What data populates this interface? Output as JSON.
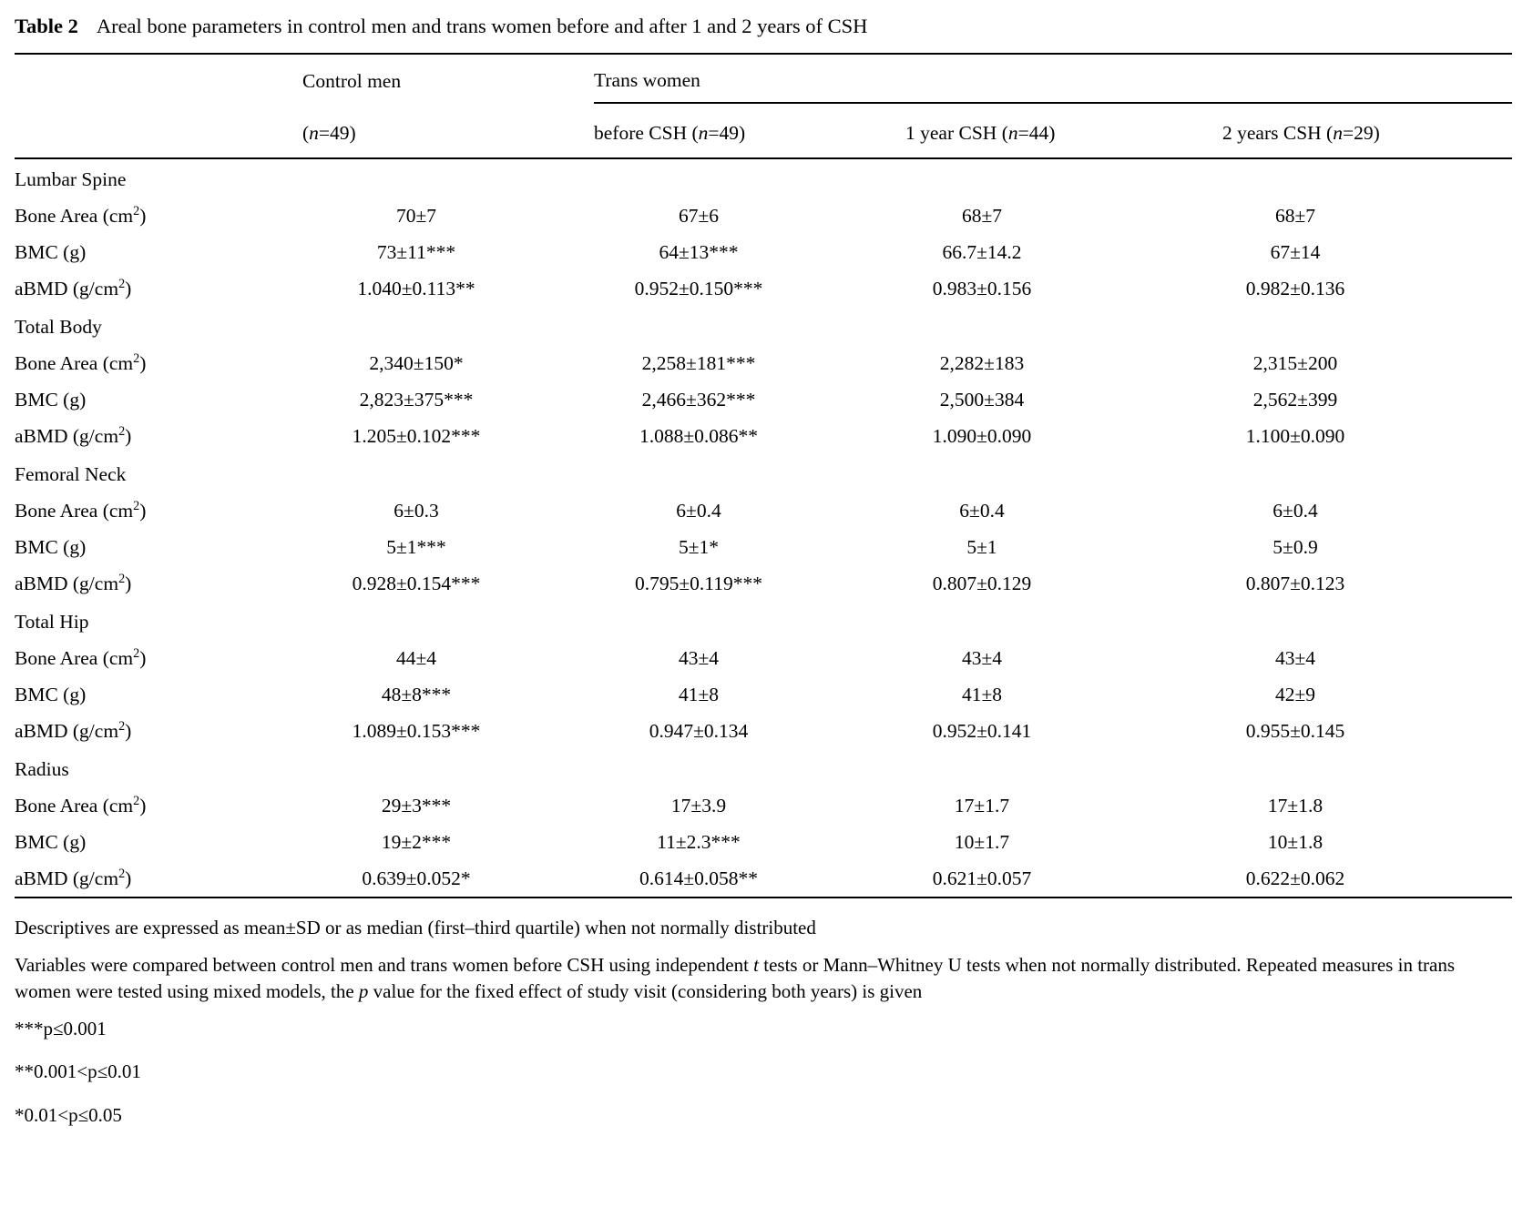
{
  "title": {
    "label": "Table 2",
    "text": "Areal bone parameters in control men and trans women before and after 1 and 2 years of CSH"
  },
  "table": {
    "group_headers": {
      "control": "Control men",
      "trans": "Trans women"
    },
    "col_subheaders": [
      [
        {
          "t": "("
        },
        {
          "t": "n",
          "i": true
        },
        {
          "t": "=49)"
        }
      ],
      [
        {
          "t": "before CSH ("
        },
        {
          "t": "n",
          "i": true
        },
        {
          "t": "=49)"
        }
      ],
      [
        {
          "t": "1 year CSH ("
        },
        {
          "t": "n",
          "i": true
        },
        {
          "t": "=44)"
        }
      ],
      [
        {
          "t": "2 years CSH ("
        },
        {
          "t": "n",
          "i": true
        },
        {
          "t": "=29)"
        }
      ]
    ],
    "sections": [
      {
        "label": "Lumbar Spine",
        "rows": [
          {
            "label": [
              {
                "t": "Bone Area (cm"
              },
              {
                "t": "2",
                "sup": true
              },
              {
                "t": ")"
              }
            ],
            "values": [
              "70±7",
              "67±6",
              "68±7",
              "68±7"
            ]
          },
          {
            "label": [
              {
                "t": "BMC (g)"
              }
            ],
            "values": [
              "73±11***",
              "64±13***",
              "66.7±14.2",
              "67±14"
            ]
          },
          {
            "label": [
              {
                "t": "aBMD (g/cm"
              },
              {
                "t": "2",
                "sup": true
              },
              {
                "t": ")"
              }
            ],
            "values": [
              "1.040±0.113**",
              "0.952±0.150***",
              "0.983±0.156",
              "0.982±0.136"
            ]
          }
        ]
      },
      {
        "label": "Total Body",
        "rows": [
          {
            "label": [
              {
                "t": "Bone Area (cm"
              },
              {
                "t": "2",
                "sup": true
              },
              {
                "t": ")"
              }
            ],
            "values": [
              "2,340±150*",
              "2,258±181***",
              "2,282±183",
              "2,315±200"
            ]
          },
          {
            "label": [
              {
                "t": "BMC (g)"
              }
            ],
            "values": [
              "2,823±375***",
              "2,466±362***",
              "2,500±384",
              "2,562±399"
            ]
          },
          {
            "label": [
              {
                "t": "aBMD (g/cm"
              },
              {
                "t": "2",
                "sup": true
              },
              {
                "t": ")"
              }
            ],
            "values": [
              "1.205±0.102***",
              "1.088±0.086**",
              "1.090±0.090",
              "1.100±0.090"
            ]
          }
        ]
      },
      {
        "label": "Femoral Neck",
        "rows": [
          {
            "label": [
              {
                "t": "Bone Area (cm"
              },
              {
                "t": "2",
                "sup": true
              },
              {
                "t": ")"
              }
            ],
            "values": [
              "6±0.3",
              "6±0.4",
              "6±0.4",
              "6±0.4"
            ]
          },
          {
            "label": [
              {
                "t": "BMC (g)"
              }
            ],
            "values": [
              "5±1***",
              "5±1*",
              "5±1",
              "5±0.9"
            ]
          },
          {
            "label": [
              {
                "t": "aBMD (g/cm"
              },
              {
                "t": "2",
                "sup": true
              },
              {
                "t": ")"
              }
            ],
            "values": [
              "0.928±0.154***",
              "0.795±0.119***",
              "0.807±0.129",
              "0.807±0.123"
            ]
          }
        ]
      },
      {
        "label": "Total Hip",
        "rows": [
          {
            "label": [
              {
                "t": "Bone Area (cm"
              },
              {
                "t": "2",
                "sup": true
              },
              {
                "t": ")"
              }
            ],
            "values": [
              "44±4",
              "43±4",
              "43±4",
              "43±4"
            ]
          },
          {
            "label": [
              {
                "t": "BMC (g)"
              }
            ],
            "values": [
              "48±8***",
              "41±8",
              "41±8",
              "42±9"
            ]
          },
          {
            "label": [
              {
                "t": "aBMD (g/cm"
              },
              {
                "t": "2",
                "sup": true
              },
              {
                "t": ")"
              }
            ],
            "values": [
              "1.089±0.153***",
              "0.947±0.134",
              "0.952±0.141",
              "0.955±0.145"
            ]
          }
        ]
      },
      {
        "label": "Radius",
        "rows": [
          {
            "label": [
              {
                "t": "Bone Area (cm"
              },
              {
                "t": "2",
                "sup": true
              },
              {
                "t": ")"
              }
            ],
            "values": [
              "29±3***",
              "17±3.9",
              "17±1.7",
              "17±1.8"
            ]
          },
          {
            "label": [
              {
                "t": "BMC (g)"
              }
            ],
            "values": [
              "19±2***",
              "11±2.3***",
              "10±1.7",
              "10±1.8"
            ]
          },
          {
            "label": [
              {
                "t": "aBMD (g/cm"
              },
              {
                "t": "2",
                "sup": true
              },
              {
                "t": ")"
              }
            ],
            "values": [
              "0.639±0.052*",
              "0.614±0.058**",
              "0.621±0.057",
              "0.622±0.062"
            ]
          }
        ]
      }
    ]
  },
  "footnotes": [
    [
      {
        "t": "Descriptives are expressed as mean±SD or as median (first–third quartile) when not normally distributed"
      }
    ],
    [
      {
        "t": "Variables were compared between control men and trans women before CSH using independent "
      },
      {
        "t": "t",
        "i": true
      },
      {
        "t": " tests or Mann–Whitney U tests when not normally distributed. Repeated measures in trans women were tested using mixed models, the "
      },
      {
        "t": "p",
        "i": true
      },
      {
        "t": " value for the fixed effect of study visit (considering both years) is given"
      }
    ]
  ],
  "significance": [
    "***p≤0.001",
    "**0.001<p≤0.01",
    "*0.01<p≤0.05"
  ]
}
